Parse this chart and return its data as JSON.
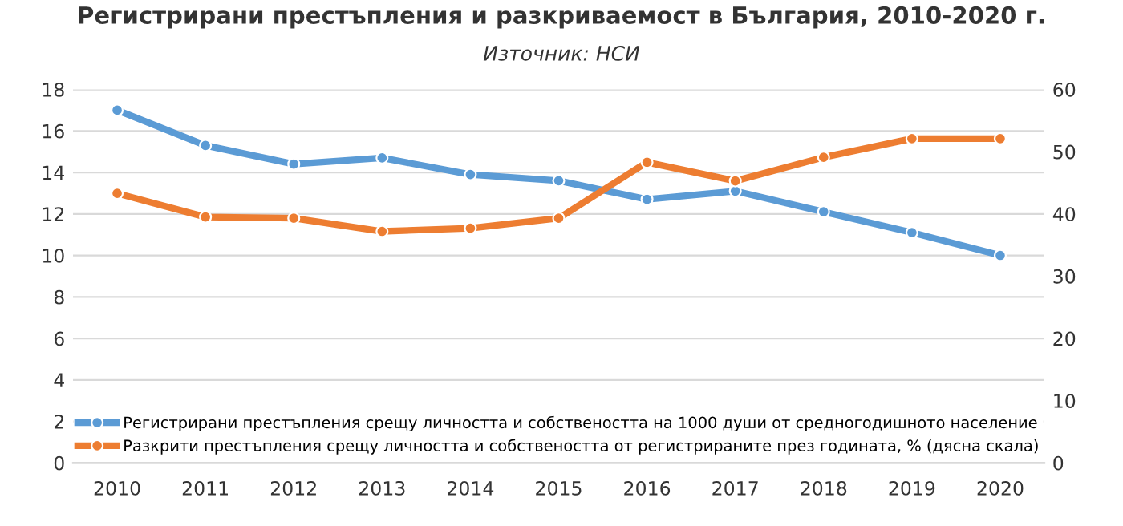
{
  "chart_data": {
    "type": "line",
    "title": "Регистрирани престъпления и разкриваемост в България, 2010-2020 г.",
    "subtitle": "Източник: НСИ",
    "categories": [
      "2010",
      "2011",
      "2012",
      "2013",
      "2014",
      "2015",
      "2016",
      "2017",
      "2018",
      "2019",
      "2020"
    ],
    "series": [
      {
        "name": "Регистрирани престъпления срещу личността и собствеността на 1000 души от средногодишното население",
        "color": "#5b9bd5",
        "values": [
          17.0,
          15.3,
          14.4,
          14.7,
          13.9,
          13.6,
          12.7,
          13.1,
          12.1,
          11.1,
          10.0
        ]
      },
      {
        "name": "Разкрити престъпления срещу личността и собствеността от регистрираните през годината, % (дясна скала)",
        "color": "#ed7d31",
        "axis": "y2",
        "values": [
          43.3,
          39.5,
          39.3,
          37.2,
          37.7,
          39.3,
          48.3,
          45.3,
          49.1,
          52.1,
          52.1
        ]
      }
    ],
    "ylim": [
      0,
      18
    ],
    "yticks": [
      0,
      2,
      4,
      6,
      8,
      10,
      12,
      14,
      16,
      18
    ],
    "y2lim": [
      0,
      60
    ],
    "y2ticks": [
      0,
      10,
      20,
      30,
      40,
      50,
      60
    ],
    "grid": "y",
    "legend": "bottom left",
    "marker": "circle",
    "line_style": "solid"
  }
}
